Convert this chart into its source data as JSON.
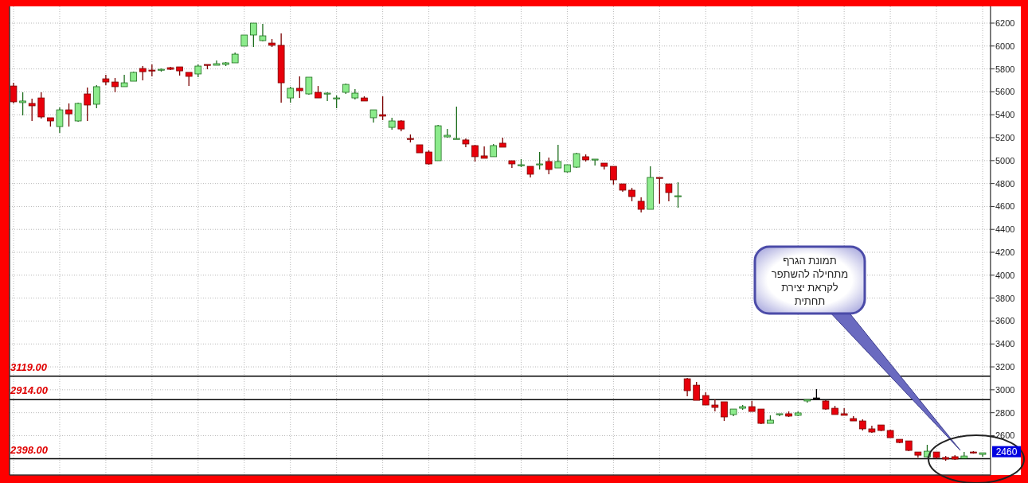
{
  "chart_data": {
    "type": "candlestick",
    "categories": [
      null,
      null,
      null,
      null,
      null,
      null,
      null,
      null,
      null,
      null,
      null,
      null,
      null,
      null,
      null,
      null,
      null,
      null,
      null,
      null,
      null,
      null,
      null,
      null,
      null,
      null,
      null,
      null,
      null,
      null,
      null,
      null,
      null,
      null,
      null,
      null,
      null,
      null,
      null,
      null,
      null,
      null,
      null,
      null,
      null,
      null,
      null,
      null,
      null,
      null,
      null,
      null,
      null,
      null,
      null,
      null,
      null,
      null,
      null,
      null,
      null,
      null,
      null,
      null,
      null,
      null,
      null,
      null,
      null,
      null,
      null,
      null,
      null,
      null,
      null,
      null,
      null,
      null,
      null,
      null,
      null,
      null,
      null,
      null,
      null,
      null,
      null,
      null,
      null,
      null,
      null,
      null,
      null,
      null,
      null,
      null,
      null,
      null,
      null,
      null,
      null,
      null,
      null,
      null,
      null,
      null
    ],
    "ohlc": [
      [
        5651,
        5679,
        5499,
        5513
      ],
      [
        5506,
        5596,
        5395,
        5520
      ],
      [
        5499,
        5540,
        5346,
        5478
      ],
      [
        5547,
        5596,
        5367,
        5381
      ],
      [
        5374,
        5374,
        5297,
        5346
      ],
      [
        5297,
        5464,
        5242,
        5443
      ],
      [
        5443,
        5499,
        5297,
        5408
      ],
      [
        5346,
        5506,
        5339,
        5499
      ],
      [
        5582,
        5638,
        5346,
        5485
      ],
      [
        5492,
        5658,
        5457,
        5645
      ],
      [
        5714,
        5749,
        5658,
        5686
      ],
      [
        5686,
        5721,
        5596,
        5645
      ],
      [
        5645,
        5749,
        5645,
        5679
      ],
      [
        5693,
        5777,
        5693,
        5770
      ],
      [
        5804,
        5825,
        5700,
        5776
      ],
      [
        5790,
        5839,
        5735,
        5784
      ],
      [
        5790,
        5804,
        5776,
        5797
      ],
      [
        5811,
        5818,
        5790,
        5797
      ],
      [
        5818,
        5818,
        5742,
        5783
      ],
      [
        5770,
        5770,
        5651,
        5735
      ],
      [
        5756,
        5839,
        5728,
        5825
      ],
      [
        5839,
        5839,
        5797,
        5832
      ],
      [
        5832,
        5874,
        5832,
        5846
      ],
      [
        5839,
        5860,
        5825,
        5853
      ],
      [
        5853,
        5943,
        5853,
        5929
      ],
      [
        5999,
        6096,
        5999,
        6096
      ],
      [
        6096,
        6200,
        5992,
        6200
      ],
      [
        6047,
        6193,
        6040,
        6089
      ],
      [
        6026,
        6061,
        5992,
        6006
      ],
      [
        6006,
        6110,
        5506,
        5679
      ],
      [
        5547,
        5645,
        5506,
        5631
      ],
      [
        5631,
        5735,
        5547,
        5610
      ],
      [
        5582,
        5728,
        5575,
        5728
      ],
      [
        5596,
        5651,
        5547,
        5547
      ],
      [
        5582,
        5596,
        5520,
        5589
      ],
      [
        5540,
        5568,
        5457,
        5547
      ],
      [
        5596,
        5672,
        5582,
        5665
      ],
      [
        5547,
        5624,
        5533,
        5589
      ],
      [
        5547,
        5561,
        5520,
        5520
      ],
      [
        5374,
        5443,
        5332,
        5443
      ],
      [
        5401,
        5561,
        5353,
        5388
      ],
      [
        5290,
        5374,
        5270,
        5346
      ],
      [
        5346,
        5353,
        5256,
        5276
      ],
      [
        5193,
        5228,
        5159,
        5186
      ],
      [
        5138,
        5138,
        5068,
        5068
      ],
      [
        5075,
        5089,
        4964,
        4971
      ],
      [
        4999,
        5311,
        4999,
        5304
      ],
      [
        5207,
        5276,
        5200,
        5221
      ],
      [
        5186,
        5471,
        5186,
        5193
      ],
      [
        5180,
        5193,
        5117,
        5145
      ],
      [
        5131,
        5138,
        4992,
        5034
      ],
      [
        5041,
        5124,
        5020,
        5020
      ],
      [
        5034,
        5145,
        5034,
        5131
      ],
      [
        5152,
        5200,
        5117,
        5117
      ],
      [
        4999,
        4999,
        4936,
        4971
      ],
      [
        4957,
        5013,
        4943,
        4964
      ],
      [
        4950,
        4950,
        4853,
        4881
      ],
      [
        4964,
        5075,
        4922,
        4971
      ],
      [
        4992,
        5027,
        4881,
        4922
      ],
      [
        4936,
        5138,
        4936,
        4992
      ],
      [
        4902,
        4964,
        4895,
        4964
      ],
      [
        4943,
        5068,
        4936,
        5061
      ],
      [
        5034,
        5054,
        4992,
        5006
      ],
      [
        5006,
        5013,
        4957,
        5013
      ],
      [
        4978,
        4978,
        4922,
        4950
      ],
      [
        4950,
        4950,
        4790,
        4832
      ],
      [
        4797,
        4797,
        4728,
        4742
      ],
      [
        4742,
        4762,
        4645,
        4686
      ],
      [
        4645,
        4679,
        4547,
        4575
      ],
      [
        4575,
        4950,
        4575,
        4853
      ],
      [
        4853,
        4853,
        4624,
        4846
      ],
      [
        4797,
        4797,
        4645,
        4721
      ],
      [
        4686,
        4811,
        4589,
        4693
      ],
      [
        3096,
        3103,
        2943,
        2992
      ],
      [
        3040,
        3068,
        2908,
        2908
      ],
      [
        2950,
        2978,
        2867,
        2867
      ],
      [
        2867,
        2915,
        2811,
        2846
      ],
      [
        2895,
        2895,
        2728,
        2763
      ],
      [
        2784,
        2832,
        2770,
        2832
      ],
      [
        2839,
        2867,
        2825,
        2853
      ],
      [
        2853,
        2902,
        2811,
        2811
      ],
      [
        2832,
        2832,
        2700,
        2707
      ],
      [
        2707,
        2777,
        2707,
        2735
      ],
      [
        2784,
        2791,
        2770,
        2791
      ],
      [
        2791,
        2811,
        2763,
        2770
      ],
      [
        2777,
        2811,
        2770,
        2798
      ],
      [
        2902,
        2915,
        2888,
        2915
      ],
      [
        2929,
        3006,
        2929,
        2929
      ],
      [
        2902,
        2908,
        2825,
        2832
      ],
      [
        2839,
        2860,
        2784,
        2784
      ],
      [
        2791,
        2839,
        2777,
        2777
      ],
      [
        2749,
        2770,
        2728,
        2728
      ],
      [
        2728,
        2742,
        2645,
        2659
      ],
      [
        2659,
        2686,
        2624,
        2631
      ],
      [
        2693,
        2693,
        2638,
        2645
      ],
      [
        2645,
        2652,
        2582,
        2582
      ],
      [
        2568,
        2568,
        2534,
        2540
      ],
      [
        2554,
        2554,
        2464,
        2471
      ],
      [
        2457,
        2457,
        2409,
        2429
      ],
      [
        2415,
        2520,
        2409,
        2464
      ],
      [
        2457,
        2457,
        2395,
        2409
      ],
      [
        2409,
        2422,
        2381,
        2395
      ],
      [
        2416,
        2429,
        2388,
        2395
      ],
      [
        2402,
        2457,
        2402,
        2422
      ],
      [
        2457,
        2464,
        2443,
        2450
      ],
      [
        2436,
        2450,
        2415,
        2450
      ]
    ],
    "colors": [
      "#e8000b",
      "#8ceb8c",
      "#e8000b",
      "#e8000b",
      "#e8000b",
      "#8ceb8c",
      "#e8000b",
      "#8ceb8c",
      "#e8000b",
      "#8ceb8c",
      "#e8000b",
      "#e8000b",
      "#8ceb8c",
      "#8ceb8c",
      "#e8000b",
      "#e8000b",
      "#8ceb8c",
      "#e8000b",
      "#e8000b",
      "#e8000b",
      "#8ceb8c",
      "#e8000b",
      "#8ceb8c",
      "#8ceb8c",
      "#8ceb8c",
      "#8ceb8c",
      "#8ceb8c",
      "#8ceb8c",
      "#e8000b",
      "#e8000b",
      "#8ceb8c",
      "#e8000b",
      "#8ceb8c",
      "#e8000b",
      "#8ceb8c",
      "#8ceb8c",
      "#8ceb8c",
      "#8ceb8c",
      "#e8000b",
      "#8ceb8c",
      "#e8000b",
      "#8ceb8c",
      "#e8000b",
      "#e8000b",
      "#e8000b",
      "#e8000b",
      "#8ceb8c",
      "#8ceb8c",
      "#8ceb8c",
      "#e8000b",
      "#e8000b",
      "#e8000b",
      "#8ceb8c",
      "#e8000b",
      "#e8000b",
      "#8ceb8c",
      "#e8000b",
      "#8ceb8c",
      "#e8000b",
      "#8ceb8c",
      "#8ceb8c",
      "#8ceb8c",
      "#e8000b",
      "#8ceb8c",
      "#e8000b",
      "#e8000b",
      "#e8000b",
      "#e8000b",
      "#e8000b",
      "#8ceb8c",
      "#e8000b",
      "#e8000b",
      "#8ceb8c",
      "#e8000b",
      "#e8000b",
      "#e8000b",
      "#e8000b",
      "#e8000b",
      "#8ceb8c",
      "#8ceb8c",
      "#e8000b",
      "#e8000b",
      "#8ceb8c",
      "#8ceb8c",
      "#e8000b",
      "#8ceb8c",
      "#8ceb8c",
      "#000000",
      "#e8000b",
      "#e8000b",
      "#e8000b",
      "#e8000b",
      "#e8000b",
      "#e8000b",
      "#e8000b",
      "#e8000b",
      "#e8000b",
      "#e8000b",
      "#e8000b",
      "#8ceb8c",
      "#e8000b",
      "#e8000b",
      "#e8000b",
      "#8ceb8c",
      "#e8000b",
      "#8ceb8c"
    ],
    "ylim": [
      2256,
      6346
    ],
    "yticks": [
      2600,
      2800,
      3000,
      3200,
      3400,
      3600,
      3800,
      4000,
      4200,
      4400,
      4600,
      4800,
      5000,
      5200,
      5400,
      5600,
      5800,
      6000,
      6200
    ],
    "grid": true,
    "ref_lines": [
      {
        "axis": "y",
        "value": 3119,
        "label": "3119.00",
        "color": "#000000"
      },
      {
        "axis": "y",
        "value": 2914,
        "label": "2914.00",
        "color": "#000000"
      },
      {
        "axis": "y",
        "value": 2398,
        "label": "2398.00",
        "color": "#000000"
      }
    ],
    "annotations": [
      "תמונת הגרף\nמתחילה להשתפר\nלקראת יצירת\nתחתית",
      {
        "text": "2460",
        "y": 2460
      }
    ]
  }
}
